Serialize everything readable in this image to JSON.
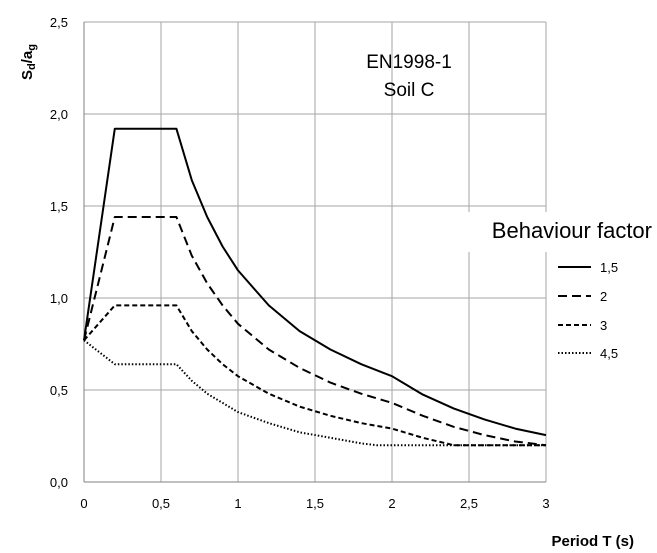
{
  "chart_data": {
    "type": "line",
    "title": "",
    "xlabel": "Period T (s)",
    "ylabel_main": "S",
    "ylabel_sub1": "d",
    "ylabel_mid": "/a",
    "ylabel_sub2": "g",
    "xlim": [
      0,
      3
    ],
    "ylim": [
      0,
      2.5
    ],
    "x_ticks": [
      0,
      0.5,
      1,
      1.5,
      2,
      2.5,
      3
    ],
    "x_tick_labels": [
      "0",
      "0,5",
      "1",
      "1,5",
      "2",
      "2,5",
      "3"
    ],
    "y_ticks": [
      0,
      0.5,
      1,
      1.5,
      2,
      2.5
    ],
    "y_tick_labels": [
      "0,0",
      "0,5",
      "1,0",
      "1,5",
      "2,0",
      "2,5"
    ],
    "grid": true,
    "annotation_line1": "EN1998-1",
    "annotation_line2": "Soil C",
    "legend_title": "Behaviour factor",
    "legend_placement": "right",
    "series": [
      {
        "name": "1,5",
        "style": "solid",
        "x": [
          0,
          0.2,
          0.6,
          0.7,
          0.8,
          0.9,
          1.0,
          1.2,
          1.4,
          1.6,
          1.8,
          2.0,
          2.2,
          2.4,
          2.6,
          2.8,
          3.0
        ],
        "y": [
          0.77,
          1.92,
          1.92,
          1.64,
          1.44,
          1.28,
          1.15,
          0.96,
          0.82,
          0.72,
          0.64,
          0.575,
          0.475,
          0.4,
          0.34,
          0.29,
          0.255
        ]
      },
      {
        "name": "2",
        "style": "dashed",
        "x": [
          0,
          0.2,
          0.6,
          0.7,
          0.8,
          0.9,
          1.0,
          1.2,
          1.4,
          1.6,
          1.8,
          2.0,
          2.2,
          2.4,
          2.6,
          2.8,
          3.0
        ],
        "y": [
          0.77,
          1.44,
          1.44,
          1.23,
          1.08,
          0.96,
          0.86,
          0.72,
          0.62,
          0.54,
          0.48,
          0.43,
          0.36,
          0.3,
          0.255,
          0.22,
          0.2
        ]
      },
      {
        "name": "3",
        "style": "short-dashed",
        "x": [
          0,
          0.2,
          0.6,
          0.7,
          0.8,
          0.9,
          1.0,
          1.2,
          1.4,
          1.6,
          1.8,
          2.0,
          2.2,
          2.4,
          2.6,
          2.8,
          3.0
        ],
        "y": [
          0.77,
          0.96,
          0.96,
          0.82,
          0.72,
          0.64,
          0.575,
          0.48,
          0.41,
          0.36,
          0.32,
          0.29,
          0.24,
          0.2,
          0.2,
          0.2,
          0.2
        ]
      },
      {
        "name": "4,5",
        "style": "dotted",
        "x": [
          0,
          0.2,
          0.6,
          0.7,
          0.8,
          0.9,
          1.0,
          1.2,
          1.4,
          1.6,
          1.8,
          1.9,
          2.0,
          2.4,
          3.0
        ],
        "y": [
          0.77,
          0.64,
          0.64,
          0.55,
          0.48,
          0.43,
          0.38,
          0.32,
          0.27,
          0.24,
          0.21,
          0.2,
          0.2,
          0.2,
          0.2
        ]
      }
    ]
  }
}
